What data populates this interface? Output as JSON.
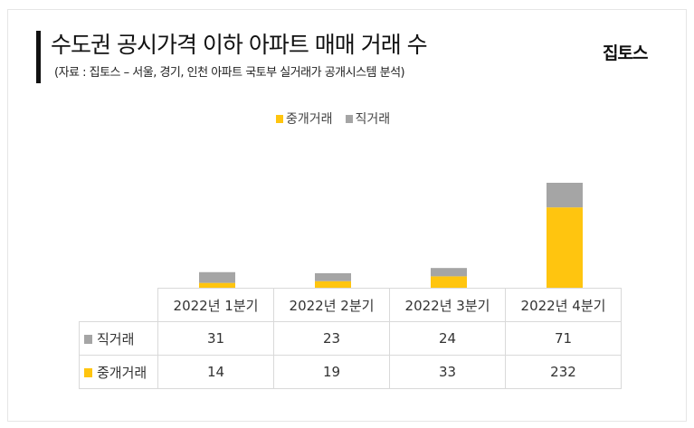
{
  "header": {
    "title": "수도권 공시가격 이하 아파트 매매 거래 수",
    "subtitle": "(자료 : 집토스 – 서울, 경기, 인천 아파트 국토부 실거래가 공개시스템 분석)",
    "logo": "집토스"
  },
  "chart_data": {
    "type": "bar",
    "stacked": true,
    "title": "수도권 공시가격 이하 아파트 매매 거래 수",
    "categories": [
      "2022년 1분기",
      "2022년 2분기",
      "2022년 3분기",
      "2022년 4분기"
    ],
    "series": [
      {
        "name": "중개거래",
        "color": "#FFC50F",
        "values": [
          14,
          19,
          33,
          232
        ]
      },
      {
        "name": "직거래",
        "color": "#A5A5A5",
        "values": [
          31,
          23,
          24,
          71
        ]
      }
    ],
    "legend": "top-center",
    "grid": false,
    "ylim": [
      0,
      303
    ]
  }
}
